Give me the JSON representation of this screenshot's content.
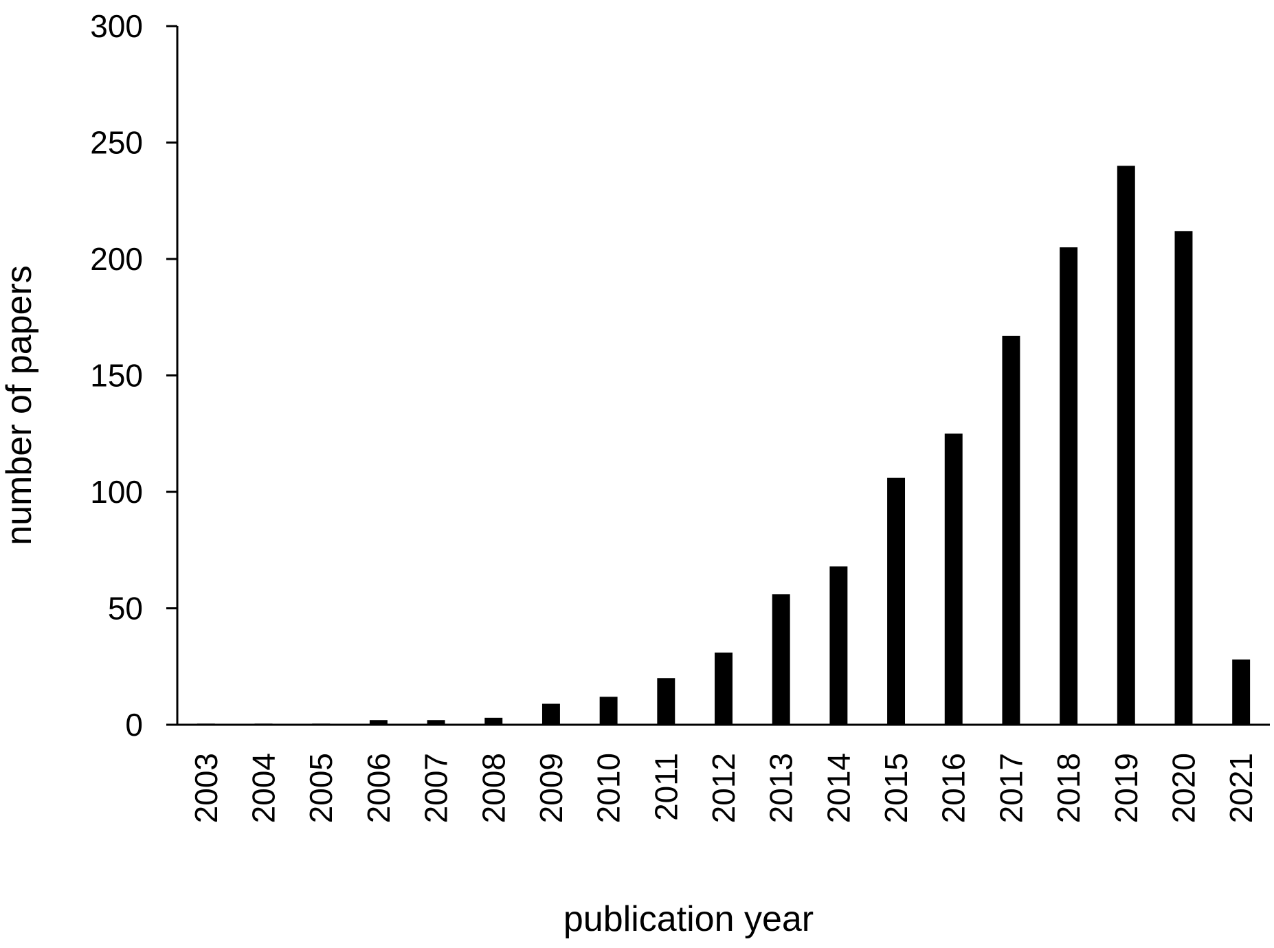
{
  "chart_data": {
    "type": "bar",
    "title": "",
    "xlabel": "publication year",
    "ylabel": "number of papers",
    "ylim": [
      0,
      300
    ],
    "yticks": [
      0,
      50,
      100,
      150,
      200,
      250,
      300
    ],
    "grid": false,
    "legend": "none",
    "bar_color": "#000000",
    "categories": [
      "2003",
      "2004",
      "2005",
      "2006",
      "2007",
      "2008",
      "2009",
      "2010",
      "2011",
      "2012",
      "2013",
      "2014",
      "2015",
      "2016",
      "2017",
      "2018",
      "2019",
      "2020",
      "2021"
    ],
    "values": [
      0.5,
      0.5,
      0.5,
      2,
      2,
      3,
      9,
      12,
      20,
      31,
      56,
      68,
      106,
      125,
      167,
      205,
      240,
      212,
      28
    ]
  }
}
